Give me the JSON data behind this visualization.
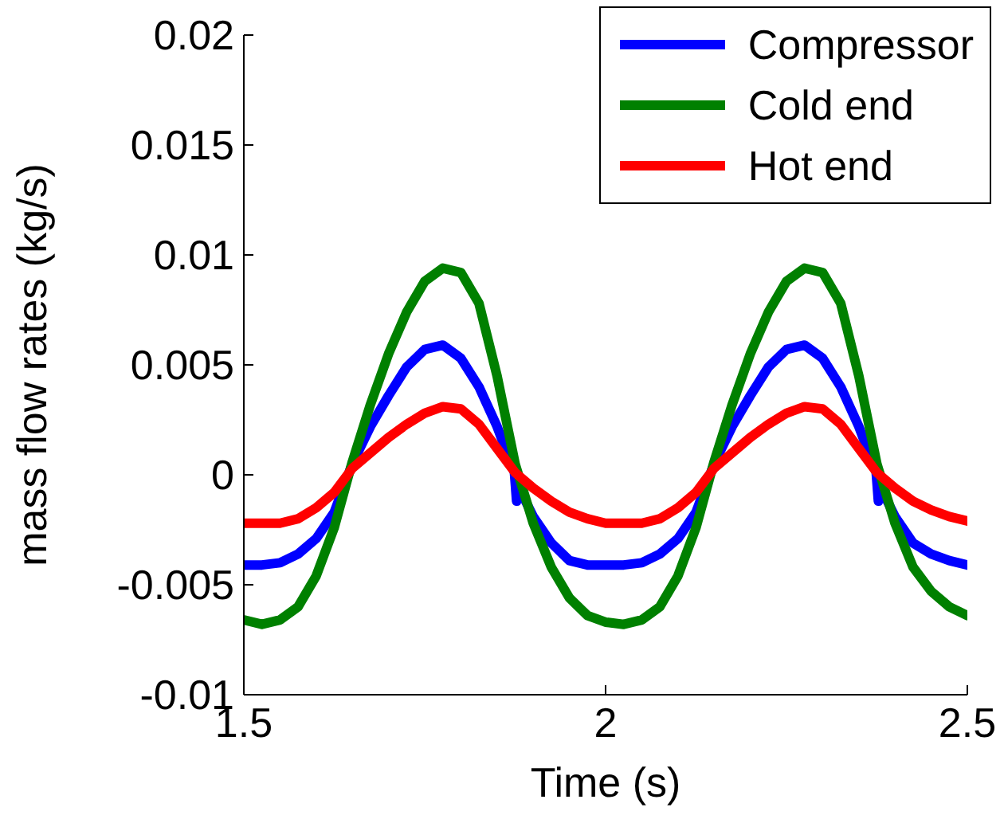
{
  "chart_data": {
    "type": "line",
    "xlabel": "Time (s)",
    "ylabel": "mass flow rates (kg/s)",
    "xlim": [
      1.5,
      2.5
    ],
    "xticks": [
      1.5,
      2,
      2.5
    ],
    "ylim": [
      -0.01,
      0.02
    ],
    "yticks": [
      -0.01,
      -0.005,
      0,
      0.005,
      0.01,
      0.015,
      0.02
    ],
    "grid": false,
    "legend": "top right",
    "marker": "none",
    "line_style": "solid",
    "series": [
      {
        "name": "Compressor",
        "color": "#0000ff",
        "x": [
          1.5,
          1.525,
          1.55,
          1.575,
          1.6,
          1.625,
          1.65,
          1.675,
          1.7,
          1.725,
          1.75,
          1.775,
          1.8,
          1.825,
          1.85,
          1.874,
          1.877,
          1.879,
          1.9,
          1.925,
          1.95,
          1.975,
          2.0,
          2.025,
          2.05,
          2.075,
          2.1,
          2.125,
          2.15,
          2.175,
          2.2,
          2.225,
          2.25,
          2.275,
          2.3,
          2.325,
          2.35,
          2.374,
          2.377,
          2.379,
          2.4,
          2.425,
          2.45,
          2.475,
          2.5
        ],
        "values": [
          -0.0041,
          -0.0041,
          -0.004,
          -0.0036,
          -0.0029,
          -0.0017,
          0.0005,
          0.0022,
          0.0036,
          0.0049,
          0.0057,
          0.0059,
          0.0053,
          0.004,
          0.0022,
          0.0001,
          -0.0012,
          -0.0005,
          -0.0019,
          -0.0031,
          -0.0039,
          -0.0041,
          -0.0041,
          -0.0041,
          -0.004,
          -0.0036,
          -0.0029,
          -0.0017,
          0.0005,
          0.0022,
          0.0036,
          0.0049,
          0.0057,
          0.0059,
          0.0053,
          0.004,
          0.0022,
          0.0001,
          -0.0012,
          -0.0005,
          -0.0019,
          -0.0031,
          -0.0036,
          -0.0039,
          -0.0041
        ]
      },
      {
        "name": "Cold end",
        "color": "#008000",
        "x": [
          1.5,
          1.525,
          1.55,
          1.575,
          1.6,
          1.625,
          1.65,
          1.675,
          1.7,
          1.725,
          1.75,
          1.775,
          1.8,
          1.825,
          1.85,
          1.875,
          1.9,
          1.925,
          1.95,
          1.975,
          2.0,
          2.025,
          2.05,
          2.075,
          2.1,
          2.125,
          2.15,
          2.175,
          2.2,
          2.225,
          2.25,
          2.275,
          2.3,
          2.325,
          2.35,
          2.375,
          2.4,
          2.425,
          2.45,
          2.475,
          2.5
        ],
        "values": [
          -0.0066,
          -0.0068,
          -0.0066,
          -0.006,
          -0.0046,
          -0.0024,
          0.0006,
          0.0032,
          0.0055,
          0.0074,
          0.0088,
          0.0094,
          0.0092,
          0.0078,
          0.0045,
          0.0005,
          -0.0022,
          -0.0042,
          -0.0056,
          -0.0064,
          -0.0067,
          -0.0068,
          -0.0066,
          -0.006,
          -0.0046,
          -0.0024,
          0.0006,
          0.0032,
          0.0055,
          0.0074,
          0.0088,
          0.0094,
          0.0092,
          0.0078,
          0.0045,
          0.0005,
          -0.0022,
          -0.0042,
          -0.0053,
          -0.006,
          -0.0064
        ]
      },
      {
        "name": "Hot end",
        "color": "#ff0000",
        "x": [
          1.5,
          1.525,
          1.55,
          1.575,
          1.6,
          1.625,
          1.65,
          1.675,
          1.7,
          1.725,
          1.75,
          1.775,
          1.8,
          1.825,
          1.85,
          1.875,
          1.9,
          1.925,
          1.95,
          1.975,
          2.0,
          2.025,
          2.05,
          2.075,
          2.1,
          2.125,
          2.15,
          2.175,
          2.2,
          2.225,
          2.25,
          2.275,
          2.3,
          2.325,
          2.35,
          2.375,
          2.4,
          2.425,
          2.45,
          2.475,
          2.5
        ],
        "values": [
          -0.0022,
          -0.0022,
          -0.0022,
          -0.002,
          -0.0015,
          -0.0008,
          0.0003,
          0.001,
          0.0017,
          0.0023,
          0.0028,
          0.0031,
          0.003,
          0.0023,
          0.0012,
          0.0001,
          -0.0006,
          -0.0012,
          -0.0017,
          -0.002,
          -0.0022,
          -0.0022,
          -0.0022,
          -0.002,
          -0.0015,
          -0.0008,
          0.0003,
          0.001,
          0.0017,
          0.0023,
          0.0028,
          0.0031,
          0.003,
          0.0023,
          0.0012,
          0.0001,
          -0.0006,
          -0.0012,
          -0.0016,
          -0.0019,
          -0.0021
        ]
      }
    ]
  }
}
